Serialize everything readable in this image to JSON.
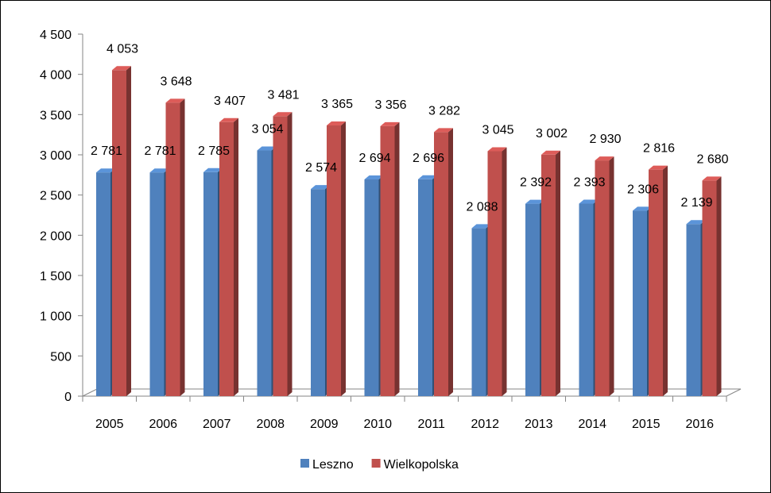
{
  "chart_data": {
    "type": "bar",
    "categories": [
      "2005",
      "2006",
      "2007",
      "2008",
      "2009",
      "2010",
      "2011",
      "2012",
      "2013",
      "2014",
      "2015",
      "2016"
    ],
    "series": [
      {
        "name": "Leszno",
        "color": "#4f81bd",
        "values": [
          2781,
          2781,
          2785,
          3054,
          2574,
          2694,
          2696,
          2088,
          2392,
          2393,
          2306,
          2139
        ],
        "labels": [
          "2 781",
          "2 781",
          "2 785",
          "3 054",
          "2 574",
          "2 694",
          "2 696",
          "2 088",
          "2 392",
          "2 393",
          "2 306",
          "2 139"
        ]
      },
      {
        "name": "Wielkopolska",
        "color": "#c0504d",
        "values": [
          4053,
          3648,
          3407,
          3481,
          3365,
          3356,
          3282,
          3045,
          3002,
          2930,
          2816,
          2680
        ],
        "labels": [
          "4 053",
          "3 648",
          "3 407",
          "3 481",
          "3 365",
          "3 356",
          "3 282",
          "3 045",
          "3 002",
          "2 930",
          "2 816",
          "2 680"
        ]
      }
    ],
    "ylim": [
      0,
      4500
    ],
    "yticks": [
      {
        "value": 0,
        "label": "0"
      },
      {
        "value": 500,
        "label": "500"
      },
      {
        "value": 1000,
        "label": "1 000"
      },
      {
        "value": 1500,
        "label": "1 500"
      },
      {
        "value": 2000,
        "label": "2 000"
      },
      {
        "value": 2500,
        "label": "2 500"
      },
      {
        "value": 3000,
        "label": "3 000"
      },
      {
        "value": 3500,
        "label": "3 500"
      },
      {
        "value": 4000,
        "label": "4 000"
      },
      {
        "value": 4500,
        "label": "4 500"
      }
    ],
    "grid": false,
    "legend": "bottom",
    "title": "",
    "xlabel": "",
    "ylabel": ""
  }
}
